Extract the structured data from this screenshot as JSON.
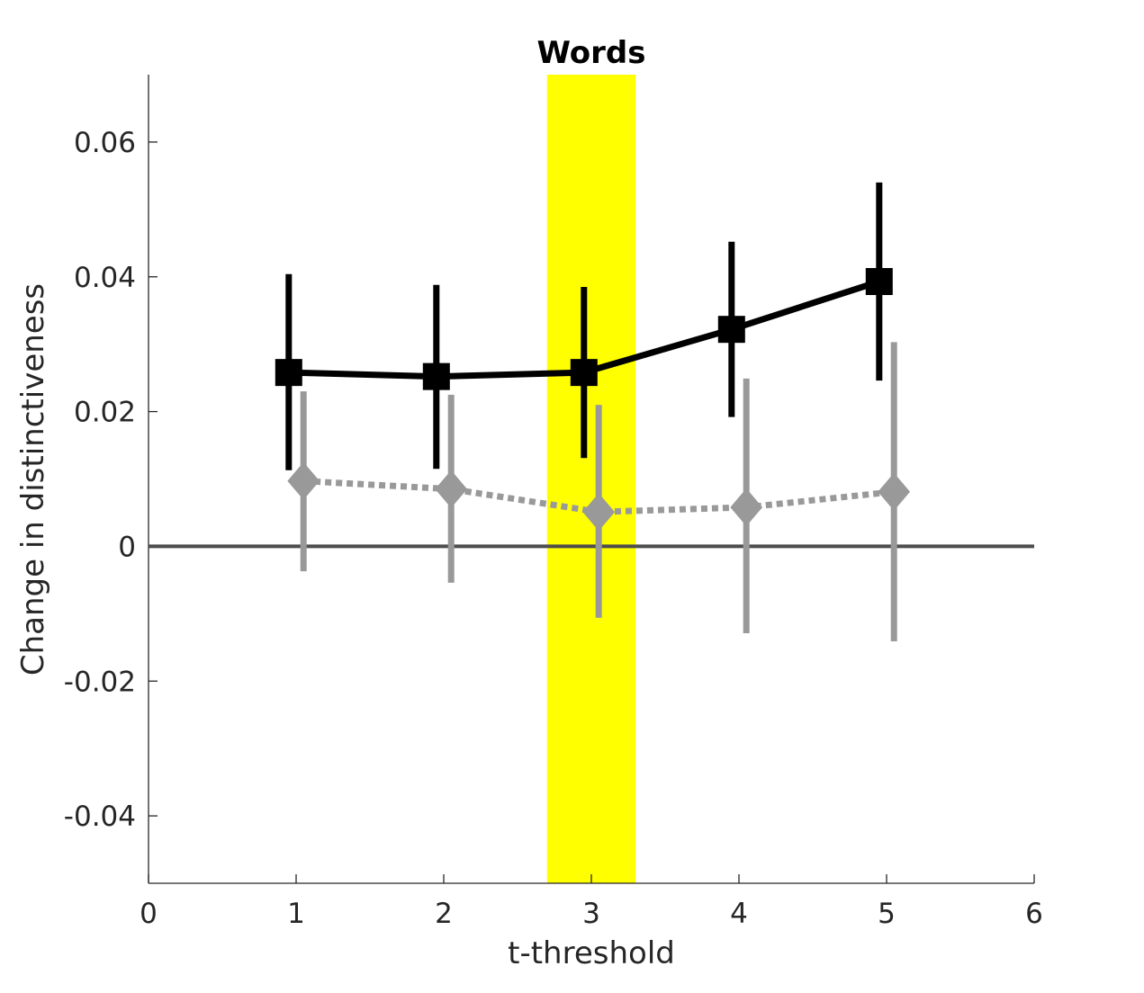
{
  "chart_data": {
    "type": "line",
    "title": "Words",
    "xlabel": "t-threshold",
    "ylabel": "Change in distinctiveness",
    "xlim": [
      0,
      6
    ],
    "ylim": [
      -0.05,
      0.07
    ],
    "xticks": [
      0,
      1,
      2,
      3,
      4,
      5,
      6
    ],
    "xtick_labels": [
      "0",
      "1",
      "2",
      "3",
      "4",
      "5",
      "6"
    ],
    "yticks": [
      -0.04,
      -0.02,
      0,
      0.02,
      0.04,
      0.06
    ],
    "ytick_labels": [
      "-0.04",
      "-0.02",
      "0",
      "0.02",
      "0.04",
      "0.06"
    ],
    "grid": false,
    "highlight_band": {
      "x_from": 2.7,
      "x_to": 3.3,
      "color": "#ffff00"
    },
    "reference_line": {
      "y": 0,
      "color": "#4d4d4d"
    },
    "series": [
      {
        "style": "solid",
        "marker": "square",
        "color": "#000000",
        "points": [
          {
            "x": 0.95,
            "y": 0.0258,
            "low": 0.0113,
            "high": 0.0404
          },
          {
            "x": 1.95,
            "y": 0.0252,
            "low": 0.0115,
            "high": 0.0388
          },
          {
            "x": 2.95,
            "y": 0.0258,
            "low": 0.0131,
            "high": 0.0385
          },
          {
            "x": 3.95,
            "y": 0.0322,
            "low": 0.0192,
            "high": 0.0452
          },
          {
            "x": 4.95,
            "y": 0.0393,
            "low": 0.0246,
            "high": 0.054
          }
        ]
      },
      {
        "style": "dotted",
        "marker": "diamond",
        "color": "#999999",
        "points": [
          {
            "x": 1.05,
            "y": 0.0097,
            "low": -0.0037,
            "high": 0.023
          },
          {
            "x": 2.05,
            "y": 0.0085,
            "low": -0.0054,
            "high": 0.0225
          },
          {
            "x": 3.05,
            "y": 0.0051,
            "low": -0.0106,
            "high": 0.021
          },
          {
            "x": 4.05,
            "y": 0.0058,
            "low": -0.0129,
            "high": 0.0249
          },
          {
            "x": 5.05,
            "y": 0.0081,
            "low": -0.0141,
            "high": 0.0303
          }
        ]
      }
    ]
  }
}
